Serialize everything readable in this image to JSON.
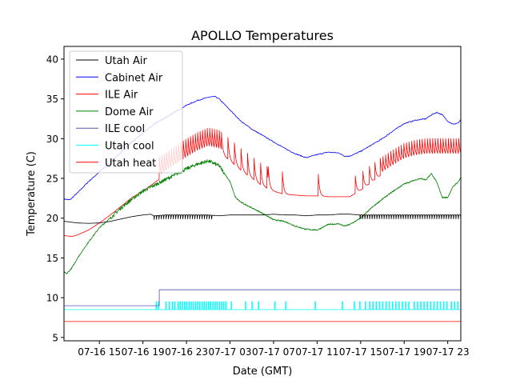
{
  "chart_data": {
    "type": "line",
    "title": "APOLLO Temperatures",
    "xlabel": "Date (GMT)",
    "ylabel": "Temperature (C)",
    "x_units": "hours since 07-16 00:00 GMT",
    "xlim": [
      11.75,
      48.2
    ],
    "ylim": [
      4.58,
      41.6
    ],
    "grid": false,
    "legend_position": "top-left",
    "x_ticks": [
      {
        "value": 15,
        "label": "07-16 15"
      },
      {
        "value": 19,
        "label": "07-16 19"
      },
      {
        "value": 23,
        "label": "07-16 23"
      },
      {
        "value": 27,
        "label": "07-17 03"
      },
      {
        "value": 31,
        "label": "07-17 07"
      },
      {
        "value": 35,
        "label": "07-17 11"
      },
      {
        "value": 39,
        "label": "07-17 15"
      },
      {
        "value": 43,
        "label": "07-17 19"
      },
      {
        "value": 47,
        "label": "07-17 23"
      }
    ],
    "y_ticks": [
      {
        "value": 5,
        "label": "5"
      },
      {
        "value": 10,
        "label": "10"
      },
      {
        "value": 15,
        "label": "15"
      },
      {
        "value": 20,
        "label": "20"
      },
      {
        "value": 25,
        "label": "25"
      },
      {
        "value": 30,
        "label": "30"
      },
      {
        "value": 35,
        "label": "35"
      },
      {
        "value": 40,
        "label": "40"
      }
    ],
    "series": [
      {
        "name": "Utah Air",
        "color": "#000000",
        "points": [
          [
            11.8,
            19.6
          ],
          [
            13,
            19.4
          ],
          [
            14,
            19.35
          ],
          [
            15,
            19.4
          ],
          [
            16,
            19.6
          ],
          [
            17,
            19.9
          ],
          [
            18,
            20.2
          ],
          [
            19,
            20.4
          ],
          [
            19.7,
            20.5
          ],
          [
            20,
            20.3
          ],
          [
            21,
            20.4
          ],
          [
            22,
            20.4
          ],
          [
            23,
            20.4
          ],
          [
            24,
            20.4
          ],
          [
            25,
            20.4
          ],
          [
            26,
            20.3
          ],
          [
            27,
            20.4
          ],
          [
            28,
            20.4
          ],
          [
            29,
            20.4
          ],
          [
            30,
            20.4
          ],
          [
            31,
            20.5
          ],
          [
            32,
            20.4
          ],
          [
            33,
            20.4
          ],
          [
            34,
            20.3
          ],
          [
            35,
            20.4
          ],
          [
            36,
            20.4
          ],
          [
            37,
            20.5
          ],
          [
            38,
            20.5
          ],
          [
            39,
            20.4
          ],
          [
            40,
            20.4
          ],
          [
            41,
            20.4
          ],
          [
            42,
            20.4
          ],
          [
            43,
            20.4
          ],
          [
            44,
            20.4
          ],
          [
            45,
            20.4
          ],
          [
            46,
            20.4
          ],
          [
            47,
            20.4
          ],
          [
            48.2,
            20.4
          ]
        ],
        "oscillation": {
          "from": 20.0,
          "to": 25.5,
          "period": 0.22,
          "amplitude": 0.6,
          "also": [
            [
              38.8,
              48.2
            ]
          ]
        }
      },
      {
        "name": "Cabinet Air",
        "color": "#0000ff",
        "points": [
          [
            11.8,
            22.4
          ],
          [
            12.3,
            22.3
          ],
          [
            13,
            23.2
          ],
          [
            14,
            24.6
          ],
          [
            15,
            25.8
          ],
          [
            16,
            27
          ],
          [
            17,
            28.3
          ],
          [
            18,
            29.6
          ],
          [
            19,
            30.7
          ],
          [
            20,
            31.8
          ],
          [
            21,
            32.6
          ],
          [
            22,
            33.4
          ],
          [
            23,
            34.2
          ],
          [
            24,
            34.8
          ],
          [
            25,
            35.2
          ],
          [
            25.6,
            35.3
          ],
          [
            26,
            35
          ],
          [
            27,
            33.6
          ],
          [
            28,
            32.2
          ],
          [
            29,
            31.2
          ],
          [
            30,
            30.4
          ],
          [
            31,
            29.6
          ],
          [
            32,
            28.8
          ],
          [
            33,
            28.1
          ],
          [
            34,
            27.6
          ],
          [
            35,
            28
          ],
          [
            36,
            28.3
          ],
          [
            37,
            28.2
          ],
          [
            37.5,
            27.8
          ],
          [
            38,
            27.8
          ],
          [
            39,
            28.4
          ],
          [
            40,
            29.2
          ],
          [
            41,
            30
          ],
          [
            42,
            31
          ],
          [
            43,
            31.9
          ],
          [
            44,
            32.3
          ],
          [
            45,
            32.5
          ],
          [
            45.5,
            33
          ],
          [
            46,
            33.3
          ],
          [
            46.5,
            33
          ],
          [
            47,
            32.2
          ],
          [
            47.5,
            31.8
          ],
          [
            48,
            32
          ],
          [
            48.2,
            32.4
          ]
        ]
      },
      {
        "name": "ILE Air",
        "color": "#ff0000",
        "points": [
          [
            11.8,
            17.8
          ],
          [
            12.5,
            17.7
          ],
          [
            13,
            17.9
          ],
          [
            14,
            18.5
          ],
          [
            15,
            19.4
          ],
          [
            16,
            20.4
          ],
          [
            17,
            21.5
          ],
          [
            18,
            22.6
          ],
          [
            19,
            23.4
          ],
          [
            20,
            24.4
          ],
          [
            21,
            25.4
          ],
          [
            22,
            26.3
          ],
          [
            23,
            27.2
          ],
          [
            24,
            28
          ],
          [
            25,
            28.6
          ],
          [
            26,
            28.3
          ],
          [
            27,
            27.2
          ],
          [
            28,
            26
          ],
          [
            29,
            25
          ],
          [
            30,
            24
          ],
          [
            31,
            23.4
          ],
          [
            32,
            23
          ],
          [
            33,
            22.9
          ],
          [
            34,
            22.8
          ],
          [
            35,
            22.8
          ],
          [
            36,
            22.7
          ],
          [
            37,
            22.7
          ],
          [
            38,
            22.7
          ],
          [
            39,
            23.5
          ],
          [
            40,
            24.5
          ],
          [
            41,
            25.5
          ],
          [
            42,
            26.4
          ],
          [
            43,
            27.2
          ],
          [
            44,
            27.6
          ],
          [
            45,
            27.8
          ],
          [
            46,
            27.8
          ],
          [
            47,
            27.8
          ],
          [
            48.2,
            27.8
          ]
        ],
        "spikes": {
          "height": 3.0,
          "regions": [
            [
              20.5,
              26.2,
              0.22
            ],
            [
              26.2,
              30.5,
              0.6
            ]
          ],
          "isolated": [
            30.5,
            31.8,
            35.1,
            38.5,
            39.2,
            39.8,
            40.3,
            40.8
          ]
        }
      },
      {
        "name": "Dome Air",
        "color": "#008000",
        "points": [
          [
            11.8,
            13.2
          ],
          [
            12,
            13
          ],
          [
            12.5,
            13.8
          ],
          [
            13,
            15
          ],
          [
            14,
            17
          ],
          [
            15,
            18.8
          ],
          [
            16,
            20
          ],
          [
            17,
            21.3
          ],
          [
            18,
            22.4
          ],
          [
            19,
            23.4
          ],
          [
            20,
            24.1
          ],
          [
            21,
            24.8
          ],
          [
            22,
            25.5
          ],
          [
            23,
            26.2
          ],
          [
            24,
            26.8
          ],
          [
            25,
            27.2
          ],
          [
            26,
            26.6
          ],
          [
            27,
            24.6
          ],
          [
            27.5,
            22.6
          ],
          [
            28,
            22
          ],
          [
            29,
            21.3
          ],
          [
            30,
            20.6
          ],
          [
            31,
            19.8
          ],
          [
            32,
            19.6
          ],
          [
            33,
            19
          ],
          [
            34,
            18.6
          ],
          [
            35,
            18.5
          ],
          [
            36,
            19.2
          ],
          [
            37,
            19.3
          ],
          [
            37.5,
            19
          ],
          [
            38,
            19.2
          ],
          [
            39,
            20
          ],
          [
            40,
            21.3
          ],
          [
            41,
            22.4
          ],
          [
            42,
            23.4
          ],
          [
            43,
            24.3
          ],
          [
            44,
            24.8
          ],
          [
            44.5,
            25
          ],
          [
            45,
            24.8
          ],
          [
            45.5,
            25.6
          ],
          [
            46,
            24.5
          ],
          [
            46.5,
            22.6
          ],
          [
            47,
            22.6
          ],
          [
            47.5,
            24
          ],
          [
            48,
            24.6
          ],
          [
            48.2,
            25.2
          ]
        ]
      },
      {
        "name": "ILE cool",
        "color": "#00008b",
        "points": [
          [
            11.8,
            9
          ],
          [
            20.5,
            9
          ],
          [
            20.5,
            11
          ],
          [
            48.2,
            11
          ]
        ]
      },
      {
        "name": "Utah cool",
        "color": "#00ffff",
        "baseline": 8.5,
        "spike_value": 9.5,
        "spike_times": [
          20.2,
          20.4,
          21.1,
          21.4,
          21.7,
          21.9,
          22.2,
          22.4,
          22.6,
          22.8,
          23,
          23.2,
          23.4,
          23.6,
          23.8,
          24,
          24.2,
          24.4,
          24.6,
          24.8,
          25,
          25.2,
          25.4,
          25.6,
          25.8,
          26,
          26.2,
          26.4,
          26.6,
          27.1,
          28.4,
          29,
          29.6,
          31.1,
          32.1,
          34.8,
          37.3,
          38.4,
          38.9,
          39.4,
          39.8,
          40.1,
          40.4,
          40.7,
          41,
          41.3,
          41.6,
          41.9,
          42.2,
          42.5,
          42.8,
          43.1,
          43.4,
          43.9,
          44.2,
          44.5,
          44.8,
          45.1,
          45.4,
          45.7,
          46,
          46.3,
          46.6,
          46.9,
          47.3,
          47.6,
          47.9
        ]
      },
      {
        "name": "Utah heat",
        "color": "#ff0000",
        "points": [
          [
            11.8,
            7
          ],
          [
            48.2,
            7
          ]
        ]
      }
    ]
  }
}
